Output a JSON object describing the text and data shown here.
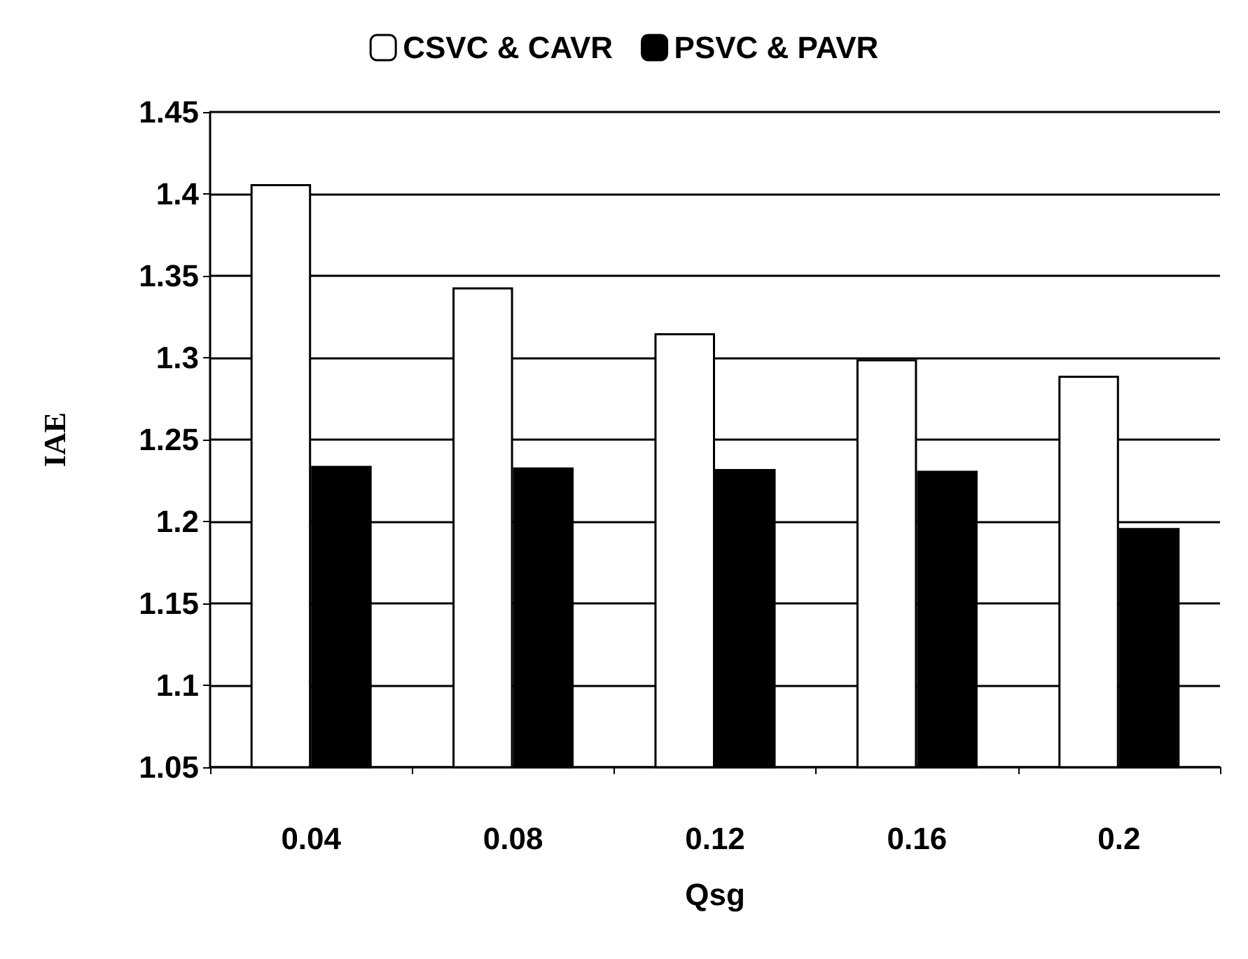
{
  "chart_data": {
    "type": "bar",
    "xlabel": "Qsg",
    "ylabel": "IAE",
    "categories": [
      "0.04",
      "0.08",
      "0.12",
      "0.16",
      "0.2"
    ],
    "series": [
      {
        "name": "CSVC & CAVR",
        "color": "#ffffff",
        "values": [
          1.406,
          1.343,
          1.315,
          1.299,
          1.289
        ]
      },
      {
        "name": "PSVC & PAVR",
        "color": "#000000",
        "values": [
          1.234,
          1.233,
          1.232,
          1.231,
          1.196
        ]
      }
    ],
    "ylim": [
      1.05,
      1.45
    ],
    "yticks": [
      1.05,
      1.1,
      1.15,
      1.2,
      1.25,
      1.3,
      1.35,
      1.4,
      1.45
    ],
    "grid": "y",
    "legend": "top"
  }
}
